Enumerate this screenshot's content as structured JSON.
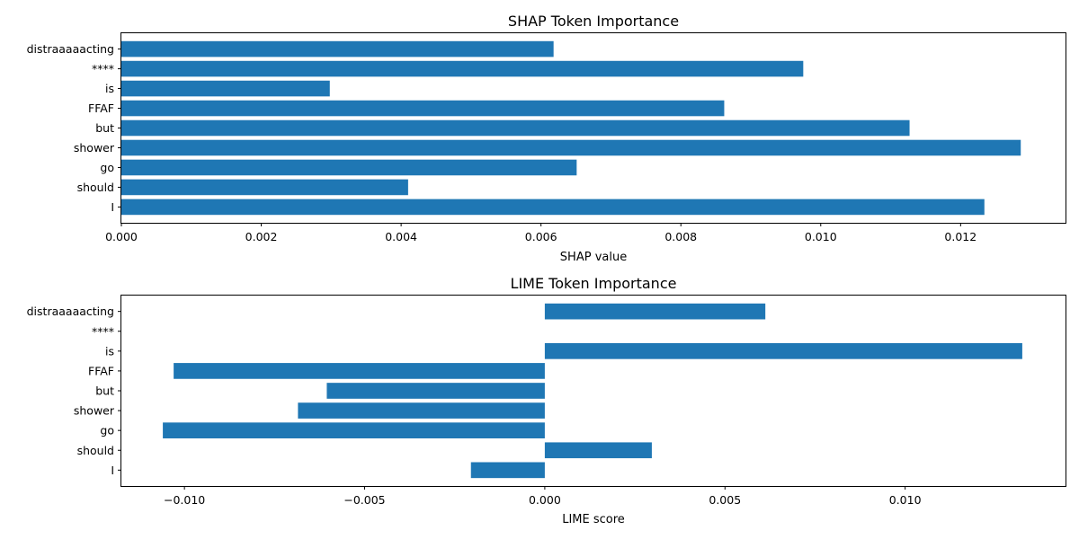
{
  "chart_data": [
    {
      "type": "bar",
      "orientation": "horizontal",
      "title": "SHAP Token Importance",
      "xlabel": "SHAP value",
      "ylabel": "",
      "categories": [
        "distraaaaacting",
        "****",
        "is",
        "FFAF",
        "but",
        "shower",
        "go",
        "should",
        "I"
      ],
      "values": [
        0.00618,
        0.00975,
        0.00298,
        0.00862,
        0.01127,
        0.01286,
        0.00651,
        0.0041,
        0.01234
      ],
      "xlim": [
        0.0,
        0.0135
      ],
      "xticks": [
        0.0,
        0.002,
        0.004,
        0.006,
        0.008,
        0.01,
        0.012
      ],
      "xtick_labels": [
        "0.000",
        "0.002",
        "0.004",
        "0.006",
        "0.008",
        "0.010",
        "0.012"
      ],
      "color": "#1f77b4",
      "grid": false
    },
    {
      "type": "bar",
      "orientation": "horizontal",
      "title": "LIME Token Importance",
      "xlabel": "LIME score",
      "ylabel": "",
      "categories": [
        "distraaaaacting",
        "****",
        "is",
        "FFAF",
        "but",
        "shower",
        "go",
        "should",
        "I"
      ],
      "values": [
        0.00612,
        0.0,
        0.01325,
        -0.0103,
        -0.00605,
        -0.00685,
        -0.0106,
        0.00297,
        -0.00205
      ],
      "xlim": [
        -0.01175,
        0.01445
      ],
      "xticks": [
        -0.01,
        -0.005,
        0.0,
        0.005,
        0.01
      ],
      "xtick_labels": [
        "−0.010",
        "−0.005",
        "0.000",
        "0.005",
        "0.010"
      ],
      "color": "#1f77b4",
      "grid": false
    }
  ]
}
